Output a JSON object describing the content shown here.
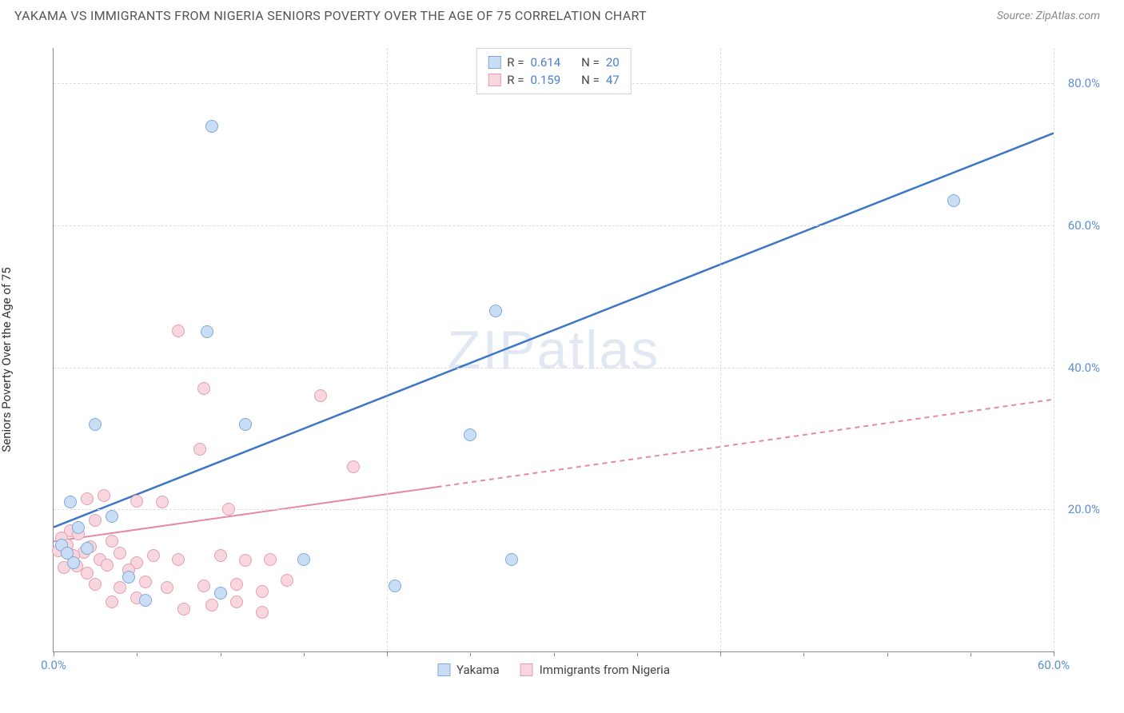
{
  "header": {
    "title": "YAKAMA VS IMMIGRANTS FROM NIGERIA SENIORS POVERTY OVER THE AGE OF 75 CORRELATION CHART",
    "source": "Source: ZipAtlas.com"
  },
  "chart": {
    "type": "scatter",
    "y_axis_label": "Seniors Poverty Over the Age of 75",
    "xlim": [
      0,
      60
    ],
    "ylim": [
      0,
      85
    ],
    "x_ticks": [
      0,
      20,
      40,
      60
    ],
    "x_tick_labels": [
      "0.0%",
      "",
      "",
      "60.0%"
    ],
    "x_minor_ticks": [
      5,
      10,
      15,
      25,
      30,
      35,
      45,
      50,
      55
    ],
    "y_ticks": [
      20,
      40,
      60,
      80
    ],
    "y_tick_labels": [
      "20.0%",
      "40.0%",
      "60.0%",
      "80.0%"
    ],
    "grid_color": "#dddddd",
    "axis_color": "#888888",
    "background_color": "#ffffff",
    "tick_label_color": "#5b8fd6",
    "watermark": "ZIPatlas",
    "series": [
      {
        "name": "Yakama",
        "fill": "#c9def5",
        "stroke": "#7fa8d8",
        "R": "0.614",
        "N": "20",
        "points": [
          [
            9.5,
            74.0
          ],
          [
            54.0,
            63.5
          ],
          [
            26.5,
            48.0
          ],
          [
            9.2,
            45.0
          ],
          [
            2.5,
            32.0
          ],
          [
            11.5,
            32.0
          ],
          [
            25.0,
            30.5
          ],
          [
            1.0,
            21.0
          ],
          [
            3.5,
            19.0
          ],
          [
            1.5,
            17.5
          ],
          [
            0.5,
            15.0
          ],
          [
            2.0,
            14.5
          ],
          [
            15.0,
            13.0
          ],
          [
            10.0,
            8.2
          ],
          [
            5.5,
            7.2
          ],
          [
            20.5,
            9.2
          ],
          [
            4.5,
            10.5
          ],
          [
            1.2,
            12.5
          ],
          [
            0.8,
            13.8
          ],
          [
            27.5,
            13.0
          ]
        ],
        "trend": {
          "x0": 0,
          "y0": 17.5,
          "x1": 60,
          "y1": 73.0,
          "color": "#3d76c8",
          "width": 2.5,
          "dash": ""
        }
      },
      {
        "name": "Immigrants from Nigeria",
        "fill": "#f7d6de",
        "stroke": "#e59fb2",
        "R": "0.159",
        "N": "47",
        "points": [
          [
            7.5,
            45.2
          ],
          [
            9.0,
            37.0
          ],
          [
            16.0,
            36.0
          ],
          [
            8.8,
            28.5
          ],
          [
            18.0,
            26.0
          ],
          [
            3.0,
            22.0
          ],
          [
            2.0,
            21.5
          ],
          [
            5.0,
            21.2
          ],
          [
            6.5,
            21.0
          ],
          [
            10.5,
            20.0
          ],
          [
            2.5,
            18.5
          ],
          [
            1.0,
            17.0
          ],
          [
            0.5,
            16.0
          ],
          [
            1.5,
            16.5
          ],
          [
            3.5,
            15.5
          ],
          [
            0.8,
            15.0
          ],
          [
            2.2,
            14.8
          ],
          [
            1.8,
            14.0
          ],
          [
            0.3,
            14.2
          ],
          [
            1.2,
            13.5
          ],
          [
            2.8,
            13.0
          ],
          [
            4.0,
            13.8
          ],
          [
            5.0,
            12.5
          ],
          [
            6.0,
            13.5
          ],
          [
            0.6,
            11.8
          ],
          [
            1.4,
            12.0
          ],
          [
            3.2,
            12.2
          ],
          [
            2.0,
            11.0
          ],
          [
            4.5,
            11.5
          ],
          [
            7.5,
            13.0
          ],
          [
            10.0,
            13.5
          ],
          [
            11.5,
            12.8
          ],
          [
            13.0,
            13.0
          ],
          [
            2.5,
            9.5
          ],
          [
            4.0,
            9.0
          ],
          [
            5.5,
            9.8
          ],
          [
            6.8,
            9.0
          ],
          [
            9.0,
            9.2
          ],
          [
            11.0,
            9.5
          ],
          [
            12.5,
            8.5
          ],
          [
            14.0,
            10.0
          ],
          [
            3.5,
            7.0
          ],
          [
            5.0,
            7.5
          ],
          [
            7.8,
            6.0
          ],
          [
            9.5,
            6.5
          ],
          [
            11.0,
            7.0
          ],
          [
            12.5,
            5.5
          ]
        ],
        "trend": {
          "x0": 0,
          "y0": 15.5,
          "x1": 60,
          "y1": 35.5,
          "color": "#e58aa0",
          "width": 2,
          "dash": "6,5",
          "solid_until_x": 23
        }
      }
    ],
    "legend_bottom": [
      {
        "label": "Yakama",
        "fill": "#c9def5",
        "stroke": "#7fa8d8"
      },
      {
        "label": "Immigrants from Nigeria",
        "fill": "#f7d6de",
        "stroke": "#e59fb2"
      }
    ]
  }
}
